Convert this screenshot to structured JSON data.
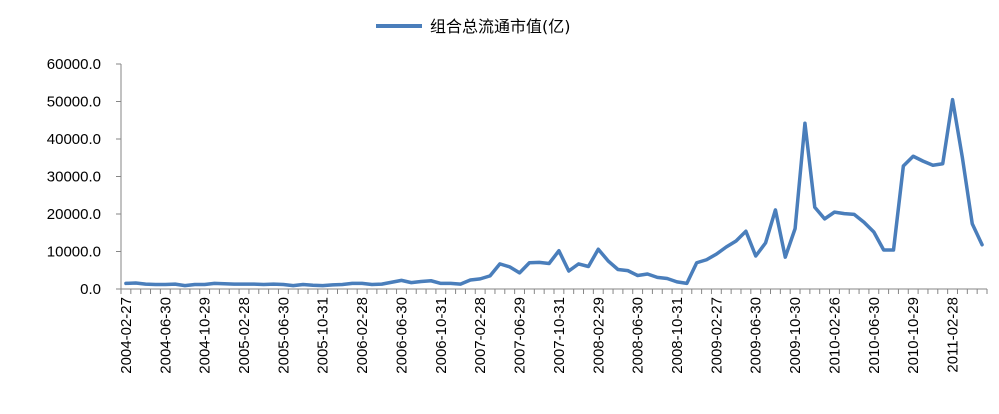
{
  "chart_data": {
    "type": "line",
    "title": "",
    "xlabel": "",
    "ylabel": "",
    "ylim": [
      0,
      60000
    ],
    "y_ticks": [
      "0.0",
      "10000.0",
      "20000.0",
      "30000.0",
      "40000.0",
      "50000.0",
      "60000.0"
    ],
    "grid": false,
    "legend_position": "top-center",
    "x_tick_labels": [
      "2004-02-27",
      "2004-06-30",
      "2004-10-29",
      "2005-02-28",
      "2005-06-30",
      "2005-10-31",
      "2006-02-28",
      "2006-06-30",
      "2006-10-31",
      "2007-02-28",
      "2007-06-29",
      "2007-10-31",
      "2008-02-29",
      "2008-06-30",
      "2008-10-31",
      "2009-02-27",
      "2009-06-30",
      "2009-10-30",
      "2010-02-26",
      "2010-06-30",
      "2010-10-29",
      "2011-02-28"
    ],
    "series": [
      {
        "name": "组合总流通市值(亿)",
        "color": "#4a7ebb",
        "values": [
          1500,
          1600,
          1300,
          1200,
          1200,
          1300,
          900,
          1200,
          1200,
          1500,
          1400,
          1300,
          1300,
          1300,
          1200,
          1300,
          1200,
          900,
          1200,
          1000,
          900,
          1100,
          1200,
          1500,
          1500,
          1200,
          1300,
          1800,
          2300,
          1700,
          2000,
          2200,
          1500,
          1500,
          1300,
          2400,
          2700,
          3500,
          6700,
          5900,
          4300,
          7000,
          7100,
          6800,
          10200,
          4800,
          6700,
          6000,
          10600,
          7500,
          5200,
          4900,
          3600,
          4000,
          3100,
          2800,
          1900,
          1500,
          7000,
          7800,
          9300,
          11200,
          12800,
          15400,
          8800,
          12300,
          21100,
          8500,
          16100,
          44200,
          21800,
          18700,
          20500,
          20100,
          19900,
          17800,
          15200,
          10400,
          10400,
          32800,
          35400,
          34100,
          33000,
          33400,
          50500,
          35000,
          17400,
          11800
        ]
      }
    ]
  }
}
